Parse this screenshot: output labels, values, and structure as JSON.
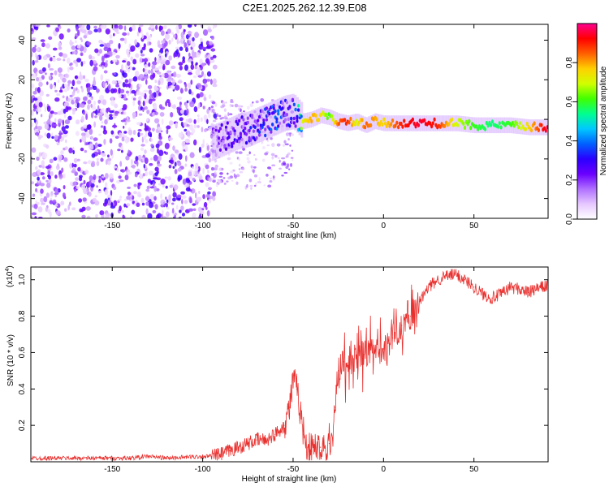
{
  "title": "C2E1.2025.262.12.39.E08",
  "chart_data": [
    {
      "type": "heatmap",
      "xlabel": "Height of straight line (km)",
      "ylabel": "Frequency (Hz)",
      "xlim": [
        -195,
        91
      ],
      "ylim": [
        -50,
        48
      ],
      "xticks": [
        -150,
        -100,
        -50,
        0,
        50
      ],
      "yticks": [
        -40,
        -20,
        0,
        20,
        40
      ],
      "colorbar": {
        "label": "Normalized spectral amplitude",
        "range": [
          0,
          1
        ],
        "ticks": [
          "0.0",
          "0.2",
          "0.4",
          "0.6",
          "0.8"
        ],
        "colormap": [
          "#ffffff",
          "#e6c8ff",
          "#b070ff",
          "#6a00ff",
          "#2a00ff",
          "#0060ff",
          "#00c8ff",
          "#00ff90",
          "#40ff00",
          "#d0ff00",
          "#ffd000",
          "#ff6000",
          "#ff0000",
          "#ff0090"
        ]
      },
      "ridge": {
        "x": [
          -95,
          -90,
          -85,
          -80,
          -75,
          -70,
          -65,
          -60,
          -55,
          -50,
          -45,
          -40,
          -35,
          -30,
          -25,
          -20,
          -15,
          -10,
          -5,
          0,
          10,
          20,
          30,
          40,
          50,
          60,
          70,
          80,
          90
        ],
        "freq": [
          -12,
          -10,
          -8,
          -6,
          -5,
          -3,
          -1,
          1,
          3,
          4,
          -1,
          0,
          2,
          1,
          -1,
          -2,
          -1,
          -3,
          -1,
          -2,
          -2,
          -2,
          -2,
          -2,
          -3,
          -3,
          -3,
          -4,
          -4
        ],
        "amplitude": [
          0.2,
          0.25,
          0.25,
          0.3,
          0.3,
          0.35,
          0.35,
          0.4,
          0.35,
          0.3,
          0.7,
          0.8,
          0.75,
          0.6,
          0.85,
          0.9,
          0.7,
          0.85,
          0.8,
          0.75,
          0.9,
          0.95,
          0.9,
          0.7,
          0.6,
          0.55,
          0.6,
          0.75,
          0.95
        ]
      }
    },
    {
      "type": "line",
      "xlabel": "Height of straight line (km)",
      "ylabel": "SNR (10 * v/v)",
      "yscale_label": "(x10",
      "yscale_exp": "4",
      "yscale_suffix": ")",
      "xlim": [
        -195,
        91
      ],
      "ylim": [
        0,
        1.07
      ],
      "xticks": [
        -150,
        -100,
        -50,
        0,
        50
      ],
      "yticks": [
        0.2,
        0.4,
        0.6,
        0.8,
        1.0
      ],
      "color": "#e8312f",
      "series": [
        {
          "x": [
            -195,
            -180,
            -160,
            -140,
            -130,
            -120,
            -100,
            -95,
            -90,
            -85,
            -80,
            -75,
            -70,
            -65,
            -60,
            -55,
            -52,
            -50,
            -48,
            -46,
            -44,
            -42,
            -40,
            -35,
            -30,
            -28,
            -27,
            -25,
            -22,
            -20,
            -15,
            -10,
            -5,
            0,
            5,
            10,
            15,
            20,
            25,
            30,
            35,
            40,
            45,
            50,
            55,
            60,
            65,
            70,
            75,
            80,
            85,
            91
          ],
          "y": [
            0.02,
            0.02,
            0.02,
            0.02,
            0.03,
            0.02,
            0.03,
            0.03,
            0.04,
            0.06,
            0.08,
            0.1,
            0.12,
            0.12,
            0.15,
            0.2,
            0.3,
            0.45,
            0.4,
            0.28,
            0.15,
            0.08,
            0.07,
            0.08,
            0.1,
            0.12,
            0.3,
            0.5,
            0.55,
            0.52,
            0.58,
            0.6,
            0.6,
            0.62,
            0.68,
            0.75,
            0.8,
            0.88,
            0.96,
            1.0,
            1.02,
            1.03,
            1.0,
            0.96,
            0.92,
            0.9,
            0.92,
            0.96,
            0.95,
            0.93,
            0.95,
            0.97
          ]
        }
      ]
    }
  ]
}
